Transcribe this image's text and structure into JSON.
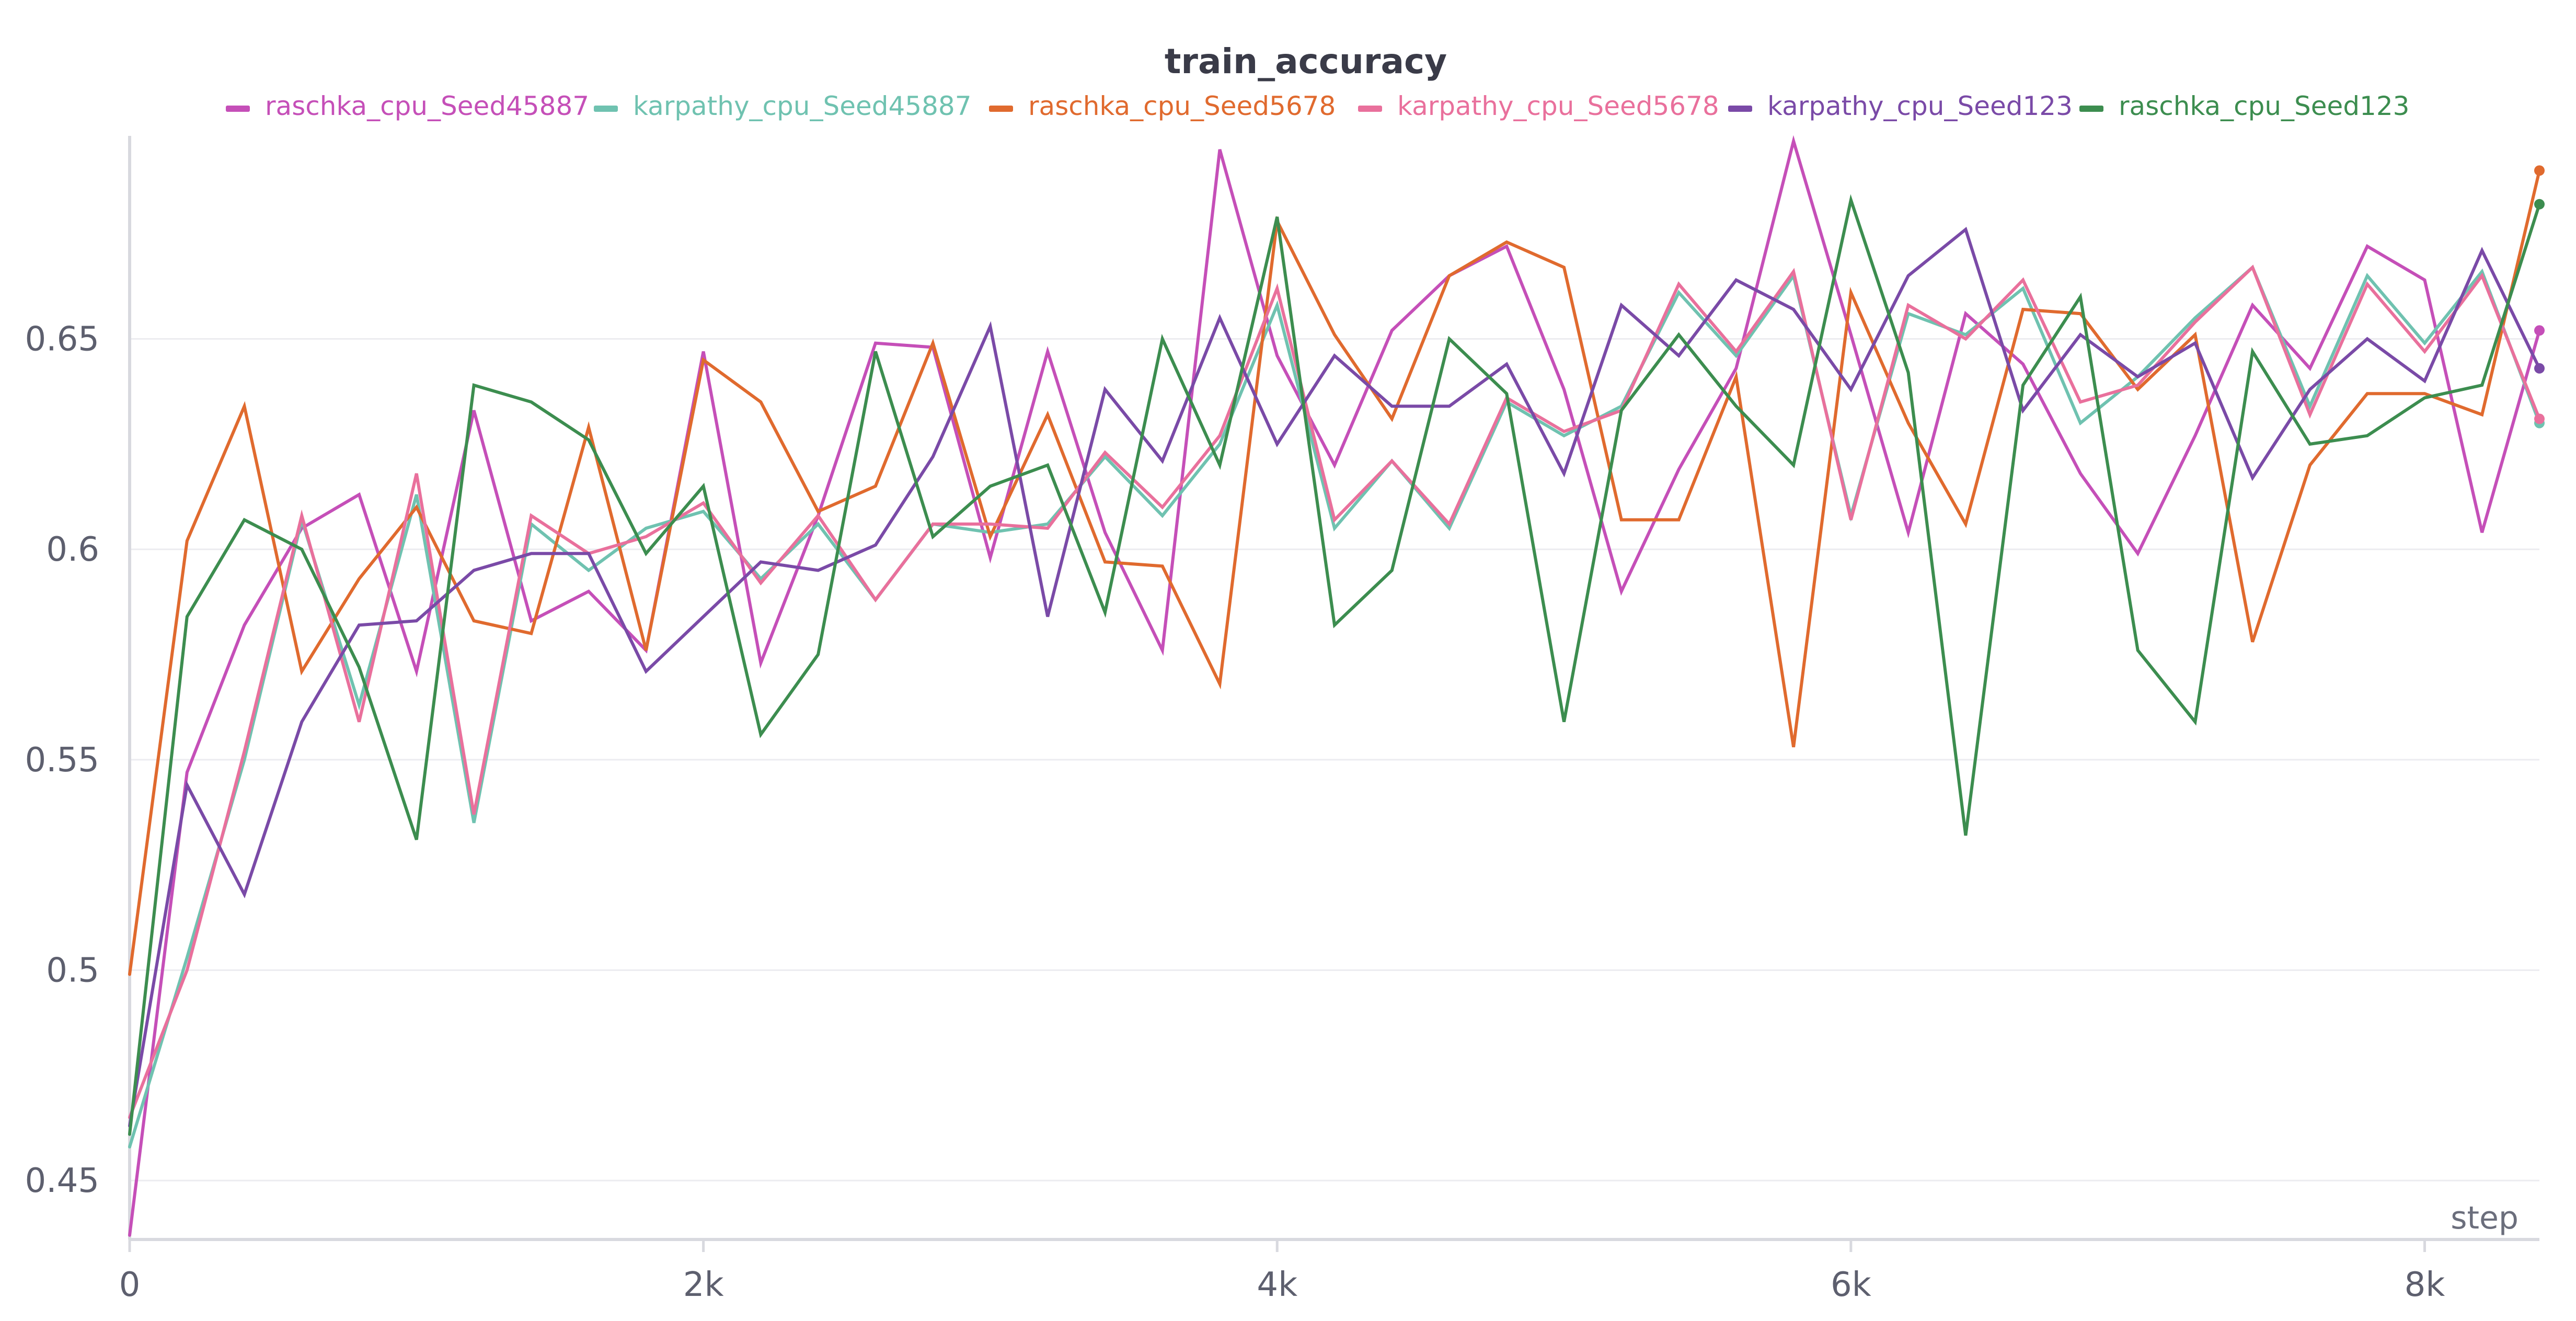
{
  "chart_data": {
    "type": "line",
    "title": "train_accuracy",
    "xlabel": "step",
    "ylabel": "",
    "xlim": [
      0,
      8400
    ],
    "ylim": [
      0.436,
      0.697
    ],
    "grid": true,
    "legend_placement": "top",
    "x_ticks": [
      0,
      2000,
      4000,
      6000,
      8000
    ],
    "x_tick_labels": [
      "0",
      "2k",
      "4k",
      "6k",
      "8k"
    ],
    "y_ticks": [
      0.45,
      0.5,
      0.55,
      0.6,
      0.65
    ],
    "y_tick_labels": [
      "0.45",
      "0.5",
      "0.55",
      "0.6",
      "0.65"
    ],
    "x": [
      0,
      200,
      400,
      600,
      800,
      1000,
      1200,
      1400,
      1600,
      1800,
      2000,
      2200,
      2400,
      2600,
      2800,
      3000,
      3200,
      3400,
      3600,
      3800,
      4000,
      4200,
      4400,
      4600,
      4800,
      5000,
      5200,
      5400,
      5600,
      5800,
      6000,
      6200,
      6400,
      6600,
      6800,
      7000,
      7200,
      7400,
      7600,
      7800,
      8000,
      8200,
      8400
    ],
    "series": [
      {
        "name": "raschka_cpu_Seed45887",
        "color": "#c54fb8",
        "values": [
          0.437,
          0.547,
          0.582,
          0.605,
          0.613,
          0.571,
          0.633,
          0.583,
          0.59,
          0.576,
          0.647,
          0.573,
          0.608,
          0.649,
          0.648,
          0.598,
          0.647,
          0.604,
          0.576,
          0.695,
          0.646,
          0.62,
          0.652,
          0.665,
          0.672,
          0.638,
          0.59,
          0.619,
          0.643,
          0.697,
          0.651,
          0.604,
          0.656,
          0.644,
          0.618,
          0.599,
          0.627,
          0.658,
          0.643,
          0.672,
          0.664,
          0.604,
          0.652
        ]
      },
      {
        "name": "karpathy_cpu_Seed45887",
        "color": "#6fc2b0",
        "values": [
          0.458,
          0.503,
          0.55,
          0.607,
          0.563,
          0.613,
          0.535,
          0.606,
          0.595,
          0.605,
          0.609,
          0.593,
          0.606,
          0.588,
          0.606,
          0.604,
          0.606,
          0.622,
          0.608,
          0.625,
          0.658,
          0.605,
          0.621,
          0.605,
          0.635,
          0.627,
          0.634,
          0.661,
          0.646,
          0.665,
          0.608,
          0.656,
          0.651,
          0.662,
          0.63,
          0.641,
          0.655,
          0.667,
          0.634,
          0.665,
          0.649,
          0.666,
          0.63
        ]
      },
      {
        "name": "raschka_cpu_Seed5678",
        "color": "#e06a2e",
        "values": [
          0.499,
          0.602,
          0.634,
          0.571,
          0.593,
          0.61,
          0.583,
          0.58,
          0.629,
          0.576,
          0.645,
          0.635,
          0.609,
          0.615,
          0.649,
          0.603,
          0.632,
          0.597,
          0.596,
          0.568,
          0.678,
          0.651,
          0.631,
          0.665,
          0.673,
          0.667,
          0.607,
          0.607,
          0.641,
          0.553,
          0.661,
          0.63,
          0.606,
          0.657,
          0.656,
          0.638,
          0.651,
          0.578,
          0.62,
          0.637,
          0.637,
          0.632,
          0.69
        ]
      },
      {
        "name": "karpathy_cpu_Seed5678",
        "color": "#e9709c",
        "values": [
          0.465,
          0.5,
          0.552,
          0.608,
          0.559,
          0.618,
          0.537,
          0.608,
          0.599,
          0.603,
          0.611,
          0.592,
          0.608,
          0.588,
          0.606,
          0.606,
          0.605,
          0.623,
          0.61,
          0.627,
          0.662,
          0.607,
          0.621,
          0.606,
          0.636,
          0.628,
          0.633,
          0.663,
          0.647,
          0.666,
          0.607,
          0.658,
          0.65,
          0.664,
          0.635,
          0.639,
          0.654,
          0.667,
          0.632,
          0.663,
          0.647,
          0.665,
          0.631
        ]
      },
      {
        "name": "karpathy_cpu_Seed123",
        "color": "#7a4aa7",
        "values": [
          0.463,
          0.544,
          0.518,
          0.559,
          0.582,
          0.583,
          0.595,
          0.599,
          0.599,
          0.571,
          0.584,
          0.597,
          0.595,
          0.601,
          0.622,
          0.653,
          0.584,
          0.638,
          0.621,
          0.655,
          0.625,
          0.646,
          0.634,
          0.634,
          0.644,
          0.618,
          0.658,
          0.646,
          0.664,
          0.657,
          0.638,
          0.665,
          0.676,
          0.633,
          0.651,
          0.641,
          0.649,
          0.617,
          0.638,
          0.65,
          0.64,
          0.671,
          0.643
        ]
      },
      {
        "name": "raschka_cpu_Seed123",
        "color": "#3c8d4f",
        "values": [
          0.461,
          0.584,
          0.607,
          0.6,
          0.572,
          0.531,
          0.639,
          0.635,
          0.626,
          0.599,
          0.615,
          0.556,
          0.575,
          0.647,
          0.603,
          0.615,
          0.62,
          0.585,
          0.65,
          0.62,
          0.679,
          0.582,
          0.595,
          0.65,
          0.637,
          0.559,
          0.633,
          0.651,
          0.634,
          0.62,
          0.683,
          0.642,
          0.532,
          0.639,
          0.66,
          0.576,
          0.559,
          0.647,
          0.625,
          0.627,
          0.636,
          0.639,
          0.682
        ]
      }
    ]
  }
}
